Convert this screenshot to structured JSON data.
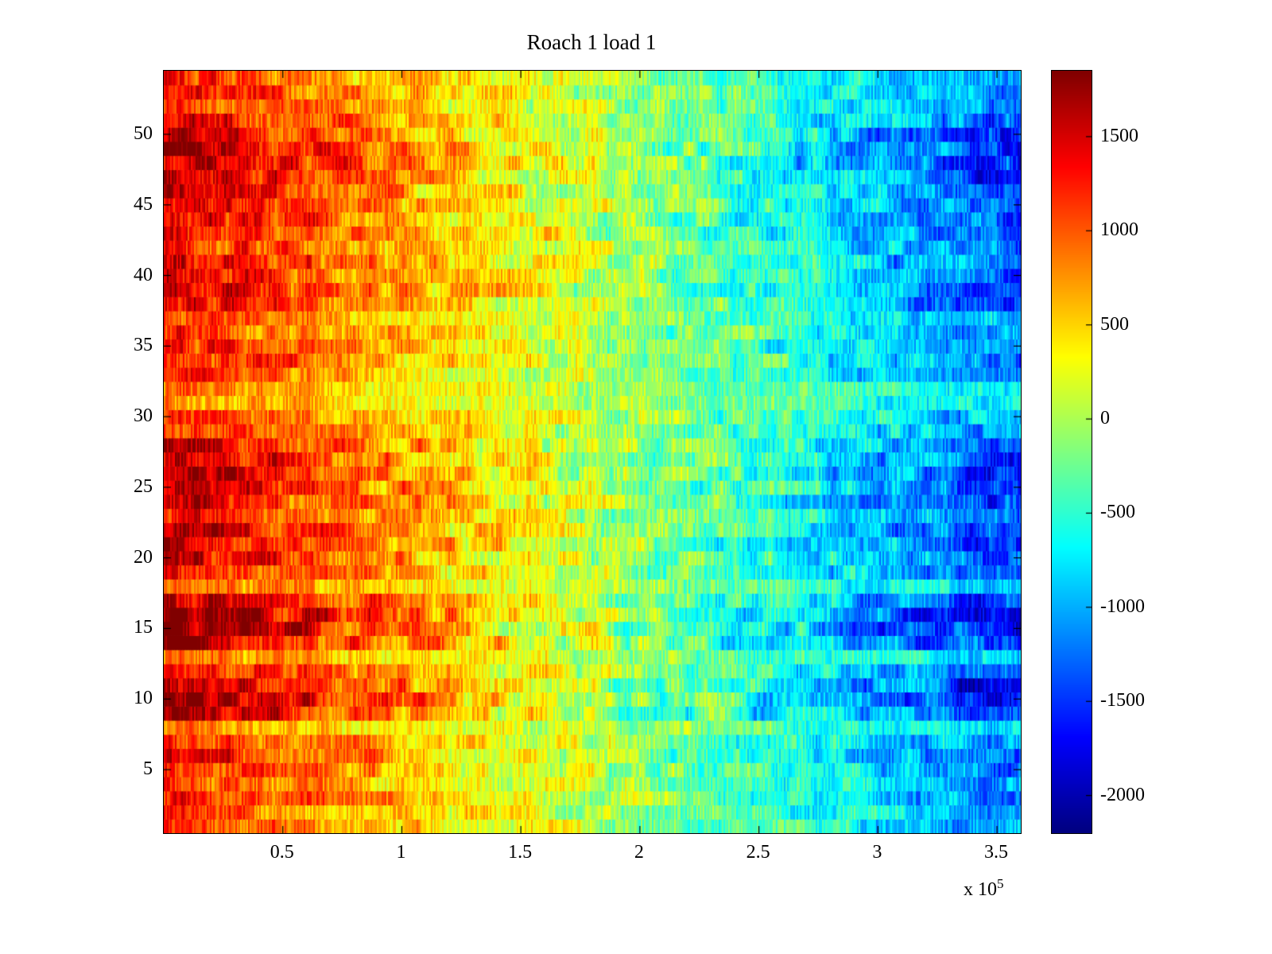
{
  "chart_data": {
    "type": "heatmap",
    "title": "Roach 1 load 1",
    "x_axis": {
      "tick_labels": [
        "0.5",
        "1",
        "1.5",
        "2",
        "2.5",
        "3",
        "3.5"
      ],
      "tick_values": [
        50000,
        100000,
        150000,
        200000,
        250000,
        300000,
        350000
      ],
      "range": [
        0,
        360000
      ],
      "exp_prefix": "x 10",
      "exp_value": "5"
    },
    "y_axis": {
      "tick_labels": [
        "5",
        "10",
        "15",
        "20",
        "25",
        "30",
        "35",
        "40",
        "45",
        "50"
      ],
      "tick_values": [
        5,
        10,
        15,
        20,
        25,
        30,
        35,
        40,
        45,
        50
      ],
      "rows": 54,
      "range": [
        0.5,
        54.5
      ]
    },
    "colorbar": {
      "colormap": "jet",
      "tick_labels": [
        "1500",
        "1000",
        "500",
        "0",
        "-500",
        "-1000",
        "-1500",
        "-2000"
      ],
      "tick_values": [
        1500,
        1000,
        500,
        0,
        -500,
        -1000,
        -1500,
        -2000
      ],
      "range": [
        -2200,
        1850
      ]
    },
    "model": {
      "seed": 20,
      "scale": 2400,
      "zero_t": 0.52,
      "noise": 280,
      "patch_noise": 320,
      "seg_len": 10,
      "row_amplitudes": [
        0.95,
        1.0,
        1.05,
        0.95,
        1.1,
        1.15,
        1.0,
        0.7,
        1.45,
        1.55,
        1.5,
        1.2,
        0.75,
        1.5,
        1.6,
        1.55,
        1.35,
        0.8,
        1.2,
        1.3,
        1.35,
        1.25,
        1.1,
        1.3,
        1.25,
        1.35,
        1.3,
        1.2,
        1.0,
        0.95,
        0.65,
        0.7,
        1.0,
        1.1,
        1.05,
        1.0,
        0.9,
        1.2,
        1.25,
        1.15,
        1.2,
        1.1,
        1.25,
        1.3,
        1.2,
        1.15,
        1.35,
        1.45,
        1.4,
        1.35,
        1.2,
        1.0,
        1.05,
        0.95
      ]
    }
  }
}
